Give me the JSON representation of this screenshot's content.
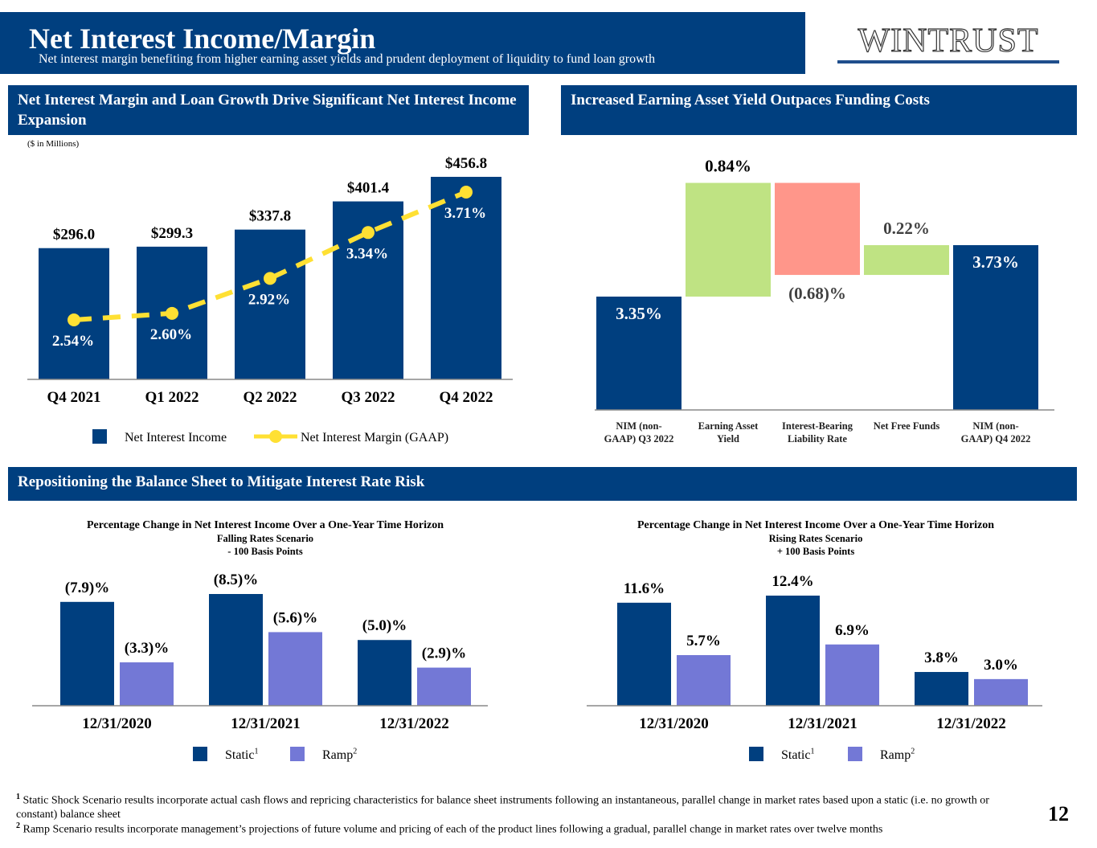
{
  "header": {
    "title": "Net Interest Income/Margin",
    "subtitle": "Net interest margin benefiting from higher earning asset yields and prudent deployment of liquidity to fund loan growth",
    "logo_text": "WINTRUST",
    "logo_mark": "®"
  },
  "colors": {
    "brand_navy": "#003f7f",
    "margin_line_yellow": "#ffe033",
    "increase_green": "#bfe383",
    "decrease_red": "#ff968a",
    "ramp_periwinkle": "#7378d6"
  },
  "sections": {
    "nii_title": "Net Interest Margin and Loan Growth Drive Significant Net Interest Income Expansion",
    "nim_bridge_title": "Increased Earning Asset Yield Outpaces Funding Costs",
    "rate_risk_title": "Repositioning the Balance Sheet to Mitigate Interest Rate Risk"
  },
  "units_note": "($ in Millions)",
  "chart_data": [
    {
      "type": "bar",
      "id": "nii_nim",
      "title": "Net Interest Margin and Loan Growth Drive Significant Net Interest Income Expansion",
      "units": "($ in Millions)",
      "categories": [
        "Q4 2021",
        "Q1 2022",
        "Q2 2022",
        "Q3 2022",
        "Q4 2022"
      ],
      "series": [
        {
          "name": "Net Interest Income",
          "kind": "bar",
          "values": [
            296.0,
            299.3,
            337.8,
            401.4,
            456.8
          ],
          "labels": [
            "$296.0",
            "$299.3",
            "$337.8",
            "$401.4",
            "$456.8"
          ]
        },
        {
          "name": "Net Interest Margin (GAAP)",
          "kind": "line",
          "values": [
            2.54,
            2.6,
            2.92,
            3.34,
            3.71
          ],
          "labels": [
            "2.54%",
            "2.60%",
            "2.92%",
            "3.34%",
            "3.71%"
          ]
        }
      ],
      "legend": [
        "Net Interest Income",
        "Net Interest Margin (GAAP)"
      ],
      "legend_position": "bottom",
      "grid": false
    },
    {
      "type": "bar",
      "subtype": "waterfall",
      "id": "nim_bridge",
      "title": "Increased Earning Asset Yield Outpaces Funding Costs",
      "categories": [
        "NIM (non-GAAP) Q3 2022",
        "Earning Asset Yield",
        "Interest-Bearing Liability Rate",
        "Net Free Funds",
        "NIM (non-GAAP) Q4 2022"
      ],
      "category_lines": [
        [
          "NIM (non-",
          "GAAP) Q3 2022"
        ],
        [
          "Earning Asset",
          "Yield"
        ],
        [
          "Interest-Bearing",
          "Liability Rate"
        ],
        [
          "Net Free Funds"
        ],
        [
          "NIM (non-",
          "GAAP) Q4 2022"
        ]
      ],
      "values": [
        3.35,
        0.84,
        -0.68,
        0.22,
        3.73
      ],
      "kinds": [
        "total",
        "increase",
        "decrease",
        "increase",
        "total"
      ],
      "labels": [
        "3.35%",
        "0.84%",
        "(0.68)%",
        "0.22%",
        "3.73%"
      ],
      "grid": false
    },
    {
      "type": "bar",
      "id": "falling_rates",
      "title": "Percentage Change in Net Interest Income Over a One-Year Time Horizon",
      "subtitle": [
        "Falling Rates Scenario",
        "- 100 Basis Points"
      ],
      "categories": [
        "12/31/2020",
        "12/31/2021",
        "12/31/2022"
      ],
      "series": [
        {
          "name": "Static",
          "footnote": "1",
          "values": [
            -7.9,
            -8.5,
            -5.0
          ],
          "labels": [
            "(7.9)%",
            "(8.5)%",
            "(5.0)%"
          ]
        },
        {
          "name": "Ramp",
          "footnote": "2",
          "values": [
            -3.3,
            -5.6,
            -2.9
          ],
          "labels": [
            "(3.3)%",
            "(5.6)%",
            "(2.9)%"
          ]
        }
      ],
      "legend_position": "bottom",
      "grid": false
    },
    {
      "type": "bar",
      "id": "rising_rates",
      "title": "Percentage Change in Net Interest Income Over a One-Year Time Horizon",
      "subtitle": [
        "Rising Rates Scenario",
        "+ 100 Basis Points"
      ],
      "categories": [
        "12/31/2020",
        "12/31/2021",
        "12/31/2022"
      ],
      "series": [
        {
          "name": "Static",
          "footnote": "1",
          "values": [
            11.6,
            12.4,
            3.8
          ],
          "labels": [
            "11.6%",
            "12.4%",
            "3.8%"
          ]
        },
        {
          "name": "Ramp",
          "footnote": "2",
          "values": [
            5.7,
            6.9,
            3.0
          ],
          "labels": [
            "5.7%",
            "6.9%",
            "3.0%"
          ]
        }
      ],
      "legend_position": "bottom",
      "grid": false
    }
  ],
  "footnotes": [
    {
      "marker": "1",
      "text": "Static Shock Scenario results incorporate actual cash flows and repricing characteristics for balance sheet instruments following an instantaneous, parallel change in market rates based upon a static (i.e. no growth or constant) balance sheet"
    },
    {
      "marker": "2",
      "text": "Ramp Scenario results incorporate management’s projections of future volume and pricing of each of the product lines following a gradual, parallel change in market rates over twelve months"
    }
  ],
  "page_number": "12"
}
